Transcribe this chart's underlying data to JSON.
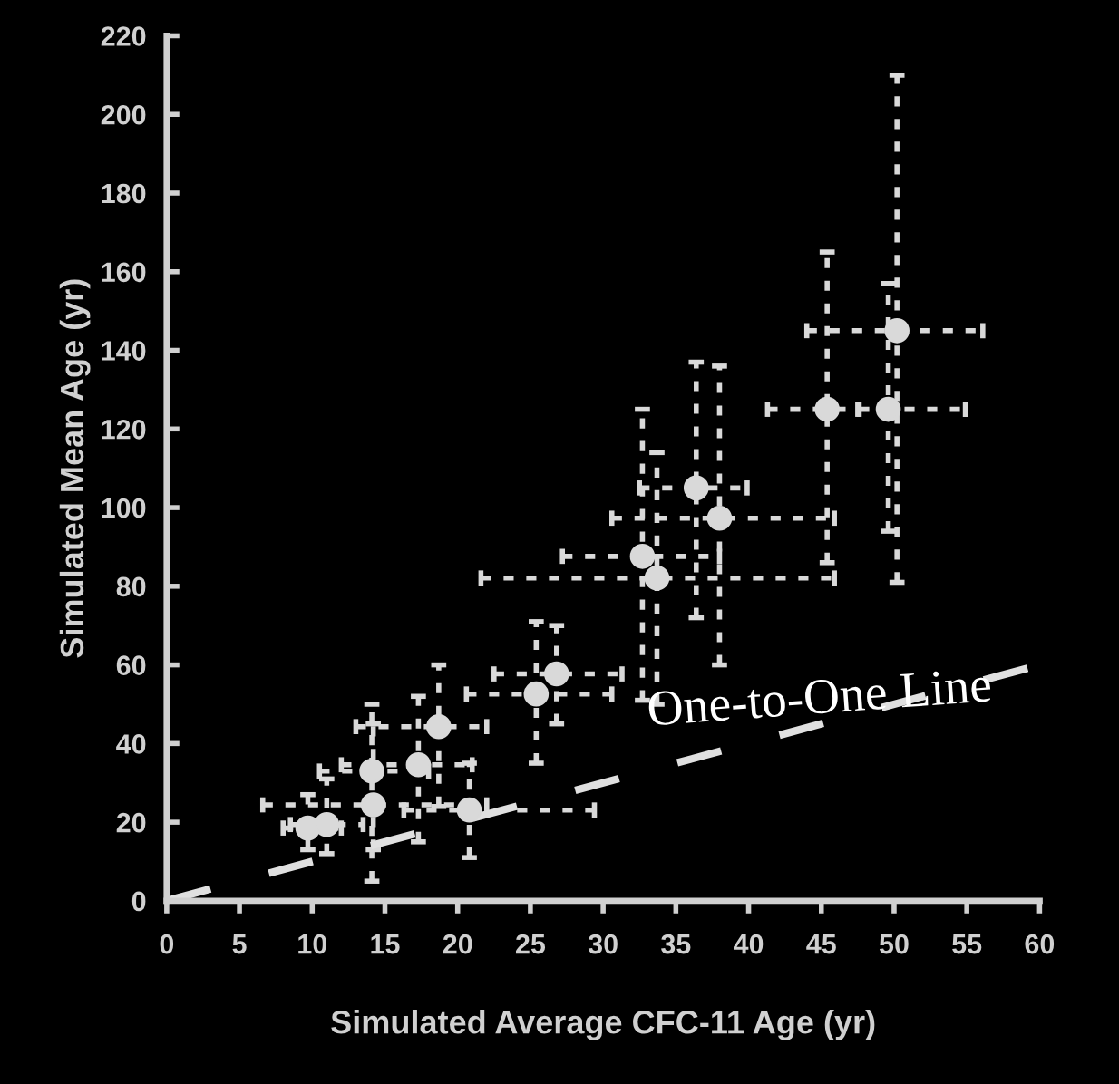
{
  "chart_data": {
    "type": "scatter",
    "xlabel": "Simulated Average CFC-11 Age (yr)",
    "ylabel": "Simulated Mean Age (yr)",
    "xlim": [
      0,
      60
    ],
    "xticks": [
      0,
      5,
      10,
      15,
      20,
      25,
      30,
      35,
      40,
      45,
      50,
      55,
      60
    ],
    "ylim": [
      0,
      220
    ],
    "yticks": [
      0,
      20,
      40,
      60,
      80,
      100,
      120,
      140,
      160,
      180,
      200,
      220
    ],
    "grid": false,
    "legend": false,
    "marker": "circle",
    "annotations": [
      {
        "text": "One-to-One Line",
        "x": 45,
        "y": 45
      }
    ],
    "series": [
      {
        "color": "#d9d9d9",
        "line_style": "dashed",
        "x": [
          9.7,
          11.0,
          14.1,
          14.2,
          17.3,
          18.7,
          20.8,
          25.4,
          26.8,
          32.7,
          33.7,
          36.4,
          38.0,
          45.4,
          49.6,
          50.2
        ],
        "values": [
          18.5,
          19.4,
          33,
          24.4,
          34.6,
          44.3,
          23.1,
          52.6,
          57.7,
          87.6,
          82.1,
          105,
          97.3,
          125,
          125,
          145
        ],
        "errors": [
          [
            13,
            27
          ],
          [
            12,
            31
          ],
          [
            5,
            50
          ],
          [
            13,
            45
          ],
          [
            15,
            52
          ],
          [
            24,
            60
          ],
          [
            11,
            35
          ],
          [
            35,
            71
          ],
          [
            45,
            70
          ],
          [
            51,
            125
          ],
          [
            50,
            114
          ],
          [
            72,
            137
          ],
          [
            60,
            136
          ],
          [
            86,
            165
          ],
          [
            94,
            157
          ],
          [
            81,
            210
          ]
        ],
        "xerrors": [
          [
            8,
            12
          ],
          [
            8.5,
            13.5
          ],
          [
            10.5,
            18
          ],
          [
            6.6,
            22
          ],
          [
            12,
            21
          ],
          [
            13,
            22
          ],
          [
            16.3,
            29.4
          ],
          [
            20.6,
            30.6
          ],
          [
            22.5,
            31.3
          ],
          [
            27.2,
            38
          ],
          [
            21.6,
            45.9
          ],
          [
            32.5,
            39.9
          ],
          [
            30.6,
            45.9
          ],
          [
            41.3,
            47.5
          ],
          [
            47.6,
            54.9
          ],
          [
            44,
            56.1
          ]
        ]
      },
      {
        "type": "line",
        "color": "#e0e0e0",
        "line_style": "dashed",
        "marker": "none",
        "x": [
          0,
          60
        ],
        "values": [
          0,
          60
        ]
      }
    ]
  }
}
